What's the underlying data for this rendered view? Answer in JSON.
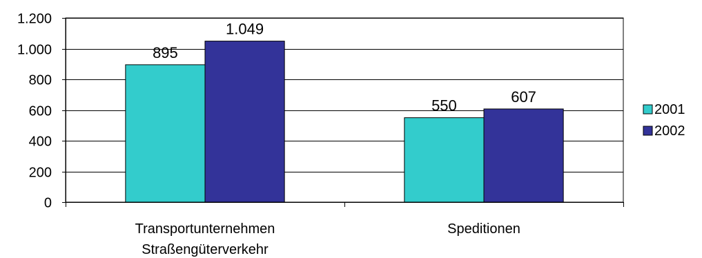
{
  "chart_data": {
    "type": "bar",
    "categories": [
      [
        "Transportunternehmen",
        "Straßengüterverkehr"
      ],
      [
        "Speditionen"
      ]
    ],
    "series": [
      {
        "name": "2001",
        "values": [
          895,
          550
        ],
        "labels": [
          "895",
          "550"
        ],
        "color": "#33CCCC"
      },
      {
        "name": "2002",
        "values": [
          1049,
          607
        ],
        "labels": [
          "1.049",
          "607"
        ],
        "color": "#333399"
      }
    ],
    "ylim": [
      0,
      1200
    ],
    "yticks": [
      {
        "value": 0,
        "label": "0"
      },
      {
        "value": 200,
        "label": "200"
      },
      {
        "value": 400,
        "label": "400"
      },
      {
        "value": 600,
        "label": "600"
      },
      {
        "value": 800,
        "label": "800"
      },
      {
        "value": 1000,
        "label": "1.000"
      },
      {
        "value": 1200,
        "label": "1.200"
      }
    ],
    "grid": true,
    "legend_position": "right"
  }
}
